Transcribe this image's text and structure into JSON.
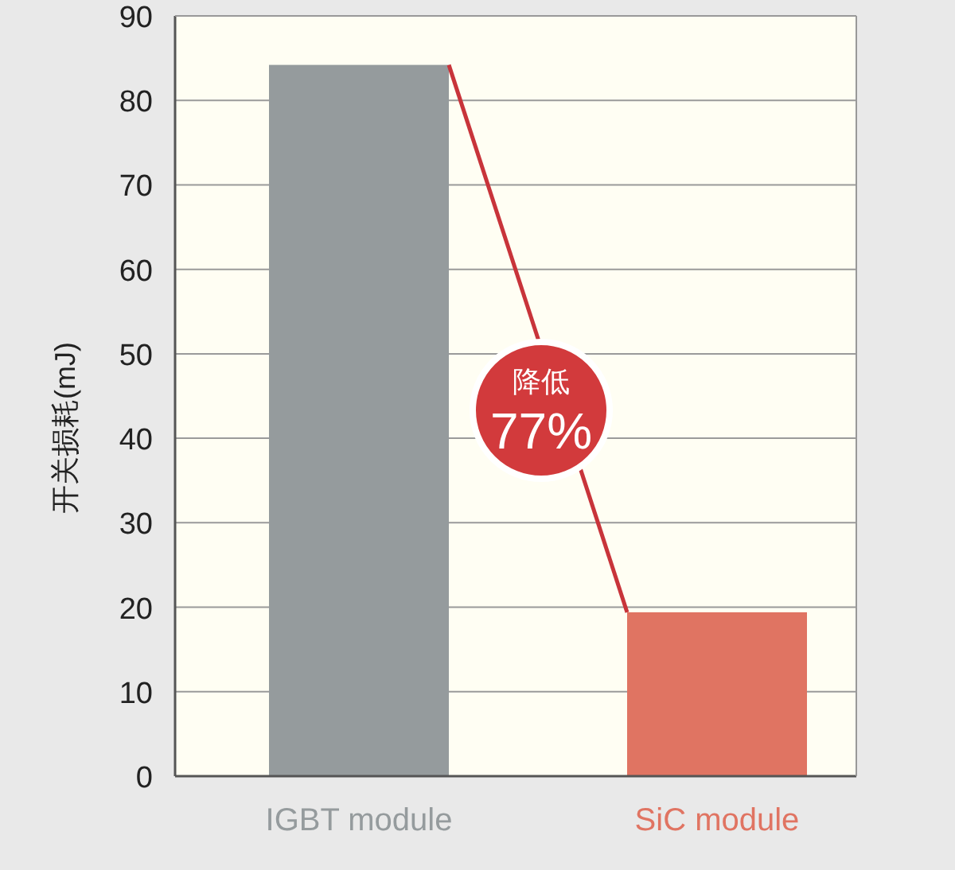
{
  "chart_data": {
    "type": "bar",
    "ylabel": "开关损耗(mJ)",
    "categories": [
      "IGBT module",
      "SiC module"
    ],
    "values": [
      84.2,
      19.4
    ],
    "colors": [
      "#959b9d",
      "#e07462"
    ],
    "ylim": [
      0,
      90
    ],
    "yticks": [
      0,
      10,
      20,
      30,
      40,
      50,
      60,
      70,
      80,
      90
    ],
    "grid": "y",
    "annotations": [
      "降低 77%"
    ]
  }
}
